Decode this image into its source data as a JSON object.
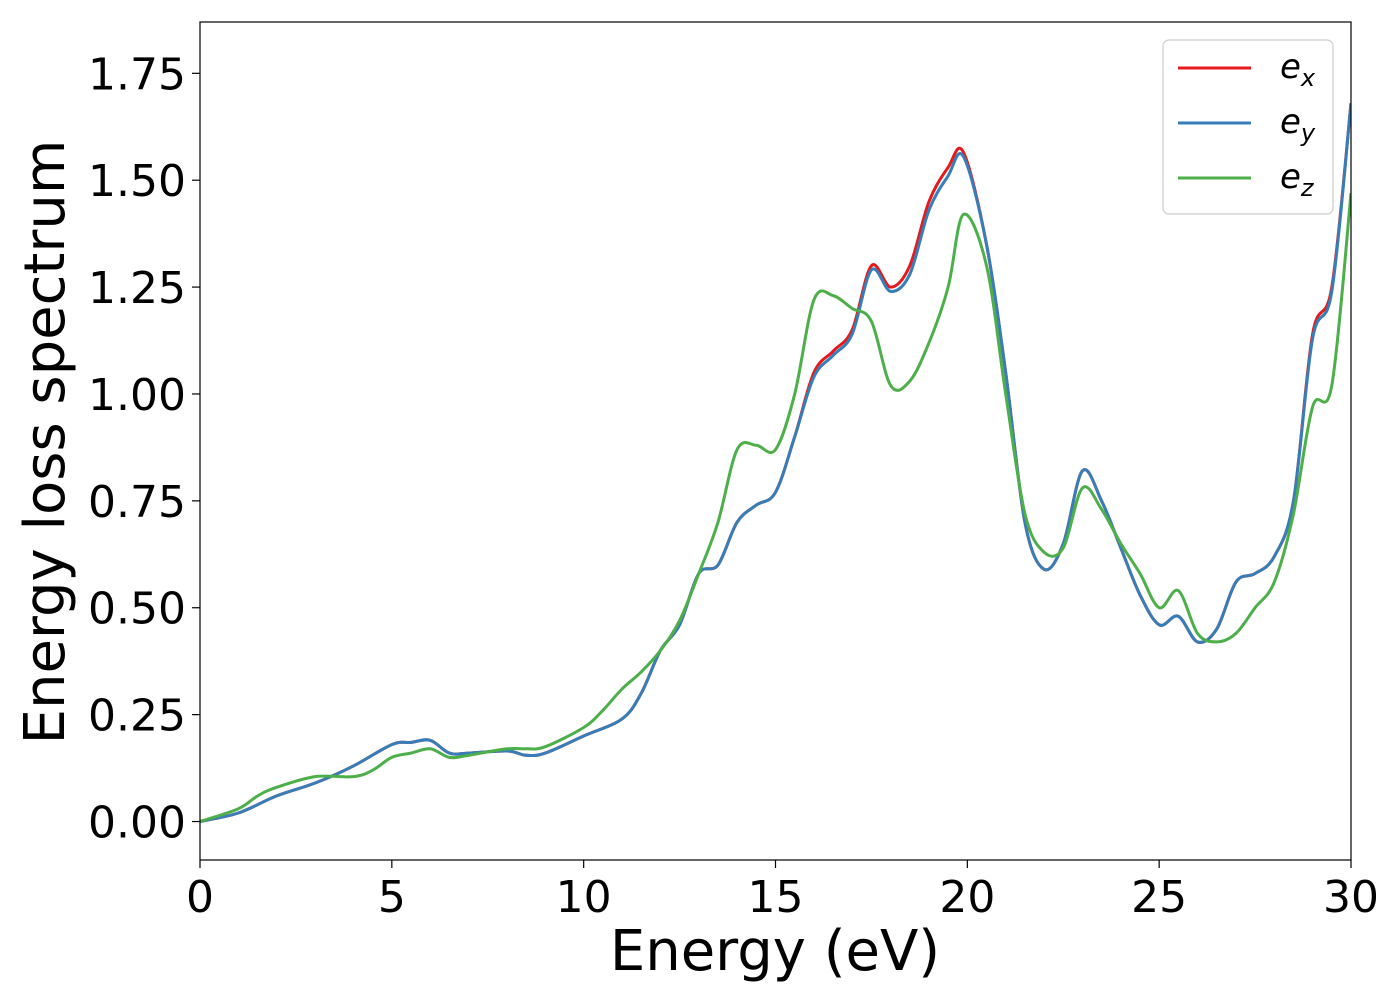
{
  "chart_data": {
    "type": "line",
    "xlabel": "Energy (eV)",
    "ylabel": "Energy loss spectrum",
    "xlim": [
      0,
      30
    ],
    "ylim": [
      -0.09,
      1.87
    ],
    "xticks": [
      0,
      5,
      10,
      15,
      20,
      25,
      30
    ],
    "xtick_labels": [
      "0",
      "5",
      "10",
      "15",
      "20",
      "25",
      "30"
    ],
    "yticks": [
      0.0,
      0.25,
      0.5,
      0.75,
      1.0,
      1.25,
      1.5,
      1.75
    ],
    "ytick_labels": [
      "0.00",
      "0.25",
      "0.50",
      "0.75",
      "1.00",
      "1.25",
      "1.50",
      "1.75"
    ],
    "grid": false,
    "legend_position": "top-right",
    "series": [
      {
        "name": "e",
        "subscript": "x",
        "color": "#e41a1c",
        "points": [
          [
            0,
            0.0
          ],
          [
            1,
            0.02
          ],
          [
            2,
            0.06
          ],
          [
            3,
            0.09
          ],
          [
            4,
            0.13
          ],
          [
            5,
            0.18
          ],
          [
            5.5,
            0.185
          ],
          [
            6,
            0.19
          ],
          [
            6.5,
            0.16
          ],
          [
            7,
            0.16
          ],
          [
            8,
            0.165
          ],
          [
            8.5,
            0.155
          ],
          [
            9,
            0.16
          ],
          [
            10,
            0.2
          ],
          [
            11,
            0.24
          ],
          [
            11.5,
            0.3
          ],
          [
            12,
            0.4
          ],
          [
            12.5,
            0.46
          ],
          [
            13,
            0.58
          ],
          [
            13.5,
            0.6
          ],
          [
            14,
            0.7
          ],
          [
            14.5,
            0.74
          ],
          [
            15,
            0.77
          ],
          [
            15.5,
            0.9
          ],
          [
            16,
            1.05
          ],
          [
            16.5,
            1.1
          ],
          [
            17,
            1.15
          ],
          [
            17.5,
            1.3
          ],
          [
            18,
            1.25
          ],
          [
            18.5,
            1.3
          ],
          [
            19,
            1.45
          ],
          [
            19.5,
            1.53
          ],
          [
            19.9,
            1.565
          ],
          [
            20.5,
            1.35
          ],
          [
            21,
            1.05
          ],
          [
            21.5,
            0.7
          ],
          [
            22,
            0.59
          ],
          [
            22.5,
            0.65
          ],
          [
            23,
            0.82
          ],
          [
            23.5,
            0.75
          ],
          [
            24,
            0.64
          ],
          [
            24.5,
            0.53
          ],
          [
            25,
            0.46
          ],
          [
            25.5,
            0.48
          ],
          [
            26,
            0.42
          ],
          [
            26.5,
            0.45
          ],
          [
            27,
            0.56
          ],
          [
            27.5,
            0.58
          ],
          [
            28,
            0.62
          ],
          [
            28.5,
            0.75
          ],
          [
            29,
            1.14
          ],
          [
            29.5,
            1.25
          ],
          [
            30,
            1.68
          ]
        ]
      },
      {
        "name": "e",
        "subscript": "y",
        "color": "#377eb8",
        "points": [
          [
            0,
            0.0
          ],
          [
            1,
            0.02
          ],
          [
            2,
            0.06
          ],
          [
            3,
            0.09
          ],
          [
            4,
            0.13
          ],
          [
            5,
            0.18
          ],
          [
            5.5,
            0.185
          ],
          [
            6,
            0.19
          ],
          [
            6.5,
            0.16
          ],
          [
            7,
            0.16
          ],
          [
            8,
            0.165
          ],
          [
            8.5,
            0.155
          ],
          [
            9,
            0.16
          ],
          [
            10,
            0.2
          ],
          [
            11,
            0.24
          ],
          [
            11.5,
            0.3
          ],
          [
            12,
            0.4
          ],
          [
            12.5,
            0.46
          ],
          [
            13,
            0.58
          ],
          [
            13.5,
            0.6
          ],
          [
            14,
            0.7
          ],
          [
            14.5,
            0.74
          ],
          [
            15,
            0.77
          ],
          [
            15.5,
            0.9
          ],
          [
            16,
            1.04
          ],
          [
            16.5,
            1.09
          ],
          [
            17,
            1.14
          ],
          [
            17.5,
            1.29
          ],
          [
            18,
            1.24
          ],
          [
            18.5,
            1.28
          ],
          [
            19,
            1.43
          ],
          [
            19.5,
            1.51
          ],
          [
            19.9,
            1.555
          ],
          [
            20.5,
            1.35
          ],
          [
            21,
            1.05
          ],
          [
            21.5,
            0.7
          ],
          [
            22,
            0.59
          ],
          [
            22.5,
            0.65
          ],
          [
            23,
            0.82
          ],
          [
            23.5,
            0.75
          ],
          [
            24,
            0.64
          ],
          [
            24.5,
            0.53
          ],
          [
            25,
            0.46
          ],
          [
            25.5,
            0.48
          ],
          [
            26,
            0.42
          ],
          [
            26.5,
            0.45
          ],
          [
            27,
            0.56
          ],
          [
            27.5,
            0.58
          ],
          [
            28,
            0.62
          ],
          [
            28.5,
            0.75
          ],
          [
            29,
            1.13
          ],
          [
            29.5,
            1.24
          ],
          [
            30,
            1.68
          ]
        ]
      },
      {
        "name": "e",
        "subscript": "z",
        "color": "#4daf4a",
        "points": [
          [
            0,
            0.0
          ],
          [
            1,
            0.03
          ],
          [
            1.5,
            0.06
          ],
          [
            2,
            0.08
          ],
          [
            3,
            0.105
          ],
          [
            4,
            0.105
          ],
          [
            4.5,
            0.12
          ],
          [
            5,
            0.15
          ],
          [
            5.5,
            0.16
          ],
          [
            6,
            0.17
          ],
          [
            6.5,
            0.15
          ],
          [
            7,
            0.155
          ],
          [
            8,
            0.17
          ],
          [
            8.5,
            0.17
          ],
          [
            9,
            0.175
          ],
          [
            10,
            0.22
          ],
          [
            10.5,
            0.26
          ],
          [
            11,
            0.31
          ],
          [
            11.5,
            0.35
          ],
          [
            12,
            0.4
          ],
          [
            12.5,
            0.47
          ],
          [
            13,
            0.58
          ],
          [
            13.5,
            0.7
          ],
          [
            14,
            0.87
          ],
          [
            14.5,
            0.88
          ],
          [
            15,
            0.87
          ],
          [
            15.5,
            1.0
          ],
          [
            16,
            1.22
          ],
          [
            16.5,
            1.23
          ],
          [
            17,
            1.2
          ],
          [
            17.5,
            1.17
          ],
          [
            18,
            1.02
          ],
          [
            18.5,
            1.03
          ],
          [
            19,
            1.12
          ],
          [
            19.5,
            1.25
          ],
          [
            19.9,
            1.42
          ],
          [
            20.5,
            1.3
          ],
          [
            21,
            1.0
          ],
          [
            21.5,
            0.72
          ],
          [
            22,
            0.63
          ],
          [
            22.5,
            0.64
          ],
          [
            23,
            0.78
          ],
          [
            23.5,
            0.73
          ],
          [
            24,
            0.65
          ],
          [
            24.5,
            0.58
          ],
          [
            25,
            0.5
          ],
          [
            25.5,
            0.54
          ],
          [
            26,
            0.44
          ],
          [
            26.5,
            0.42
          ],
          [
            27,
            0.44
          ],
          [
            27.5,
            0.5
          ],
          [
            28,
            0.56
          ],
          [
            28.5,
            0.72
          ],
          [
            29,
            0.97
          ],
          [
            29.5,
            1.02
          ],
          [
            30,
            1.47
          ]
        ]
      }
    ]
  }
}
